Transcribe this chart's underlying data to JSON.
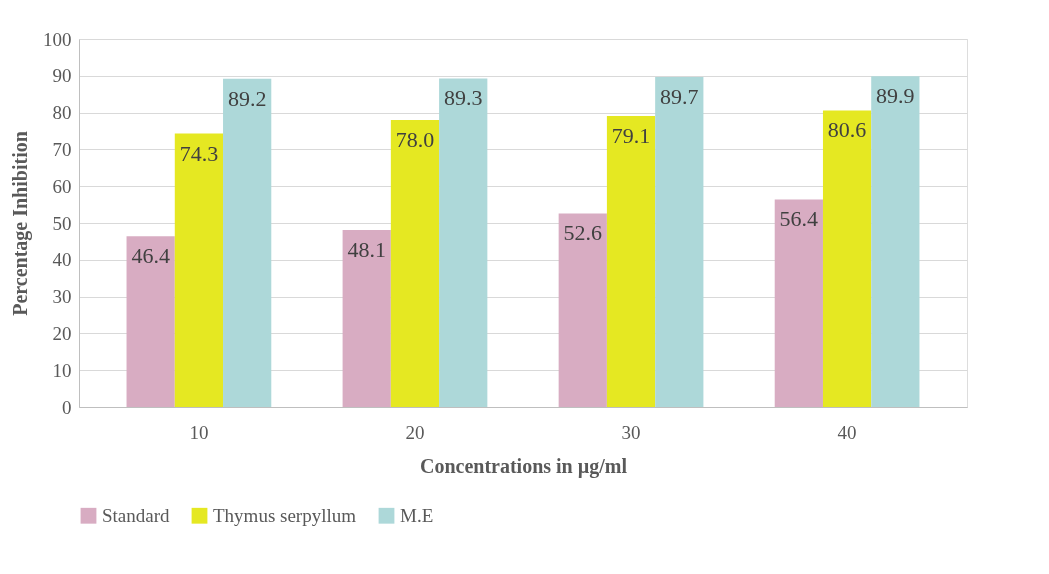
{
  "chart_data": {
    "type": "bar",
    "xlabel": "Concentrations in µg/ml",
    "ylabel": "Percentage Inhibition",
    "categories": [
      "10",
      "20",
      "30",
      "40"
    ],
    "series": [
      {
        "name": "Standard",
        "color": "#d8acc2",
        "values": [
          46.4,
          48.1,
          52.6,
          56.4
        ],
        "value_labels": [
          "46.4",
          "48.1",
          "52.6",
          "56.4"
        ]
      },
      {
        "name": "Thymus serpyllum",
        "color": "#e5e822",
        "values": [
          74.3,
          78.0,
          79.1,
          80.6
        ],
        "value_labels": [
          "74.3",
          "78.0",
          "79.1",
          "80.6"
        ]
      },
      {
        "name": "M.E",
        "color": "#add8d9",
        "values": [
          89.2,
          89.3,
          89.7,
          89.9
        ],
        "value_labels": [
          "89.2",
          "89.3",
          "89.7",
          "89.9"
        ]
      }
    ],
    "ylim": [
      0,
      100
    ],
    "yticks": [
      0,
      10,
      20,
      30,
      40,
      50,
      60,
      70,
      80,
      90,
      100
    ],
    "grid": "y",
    "legend": "bottom"
  }
}
